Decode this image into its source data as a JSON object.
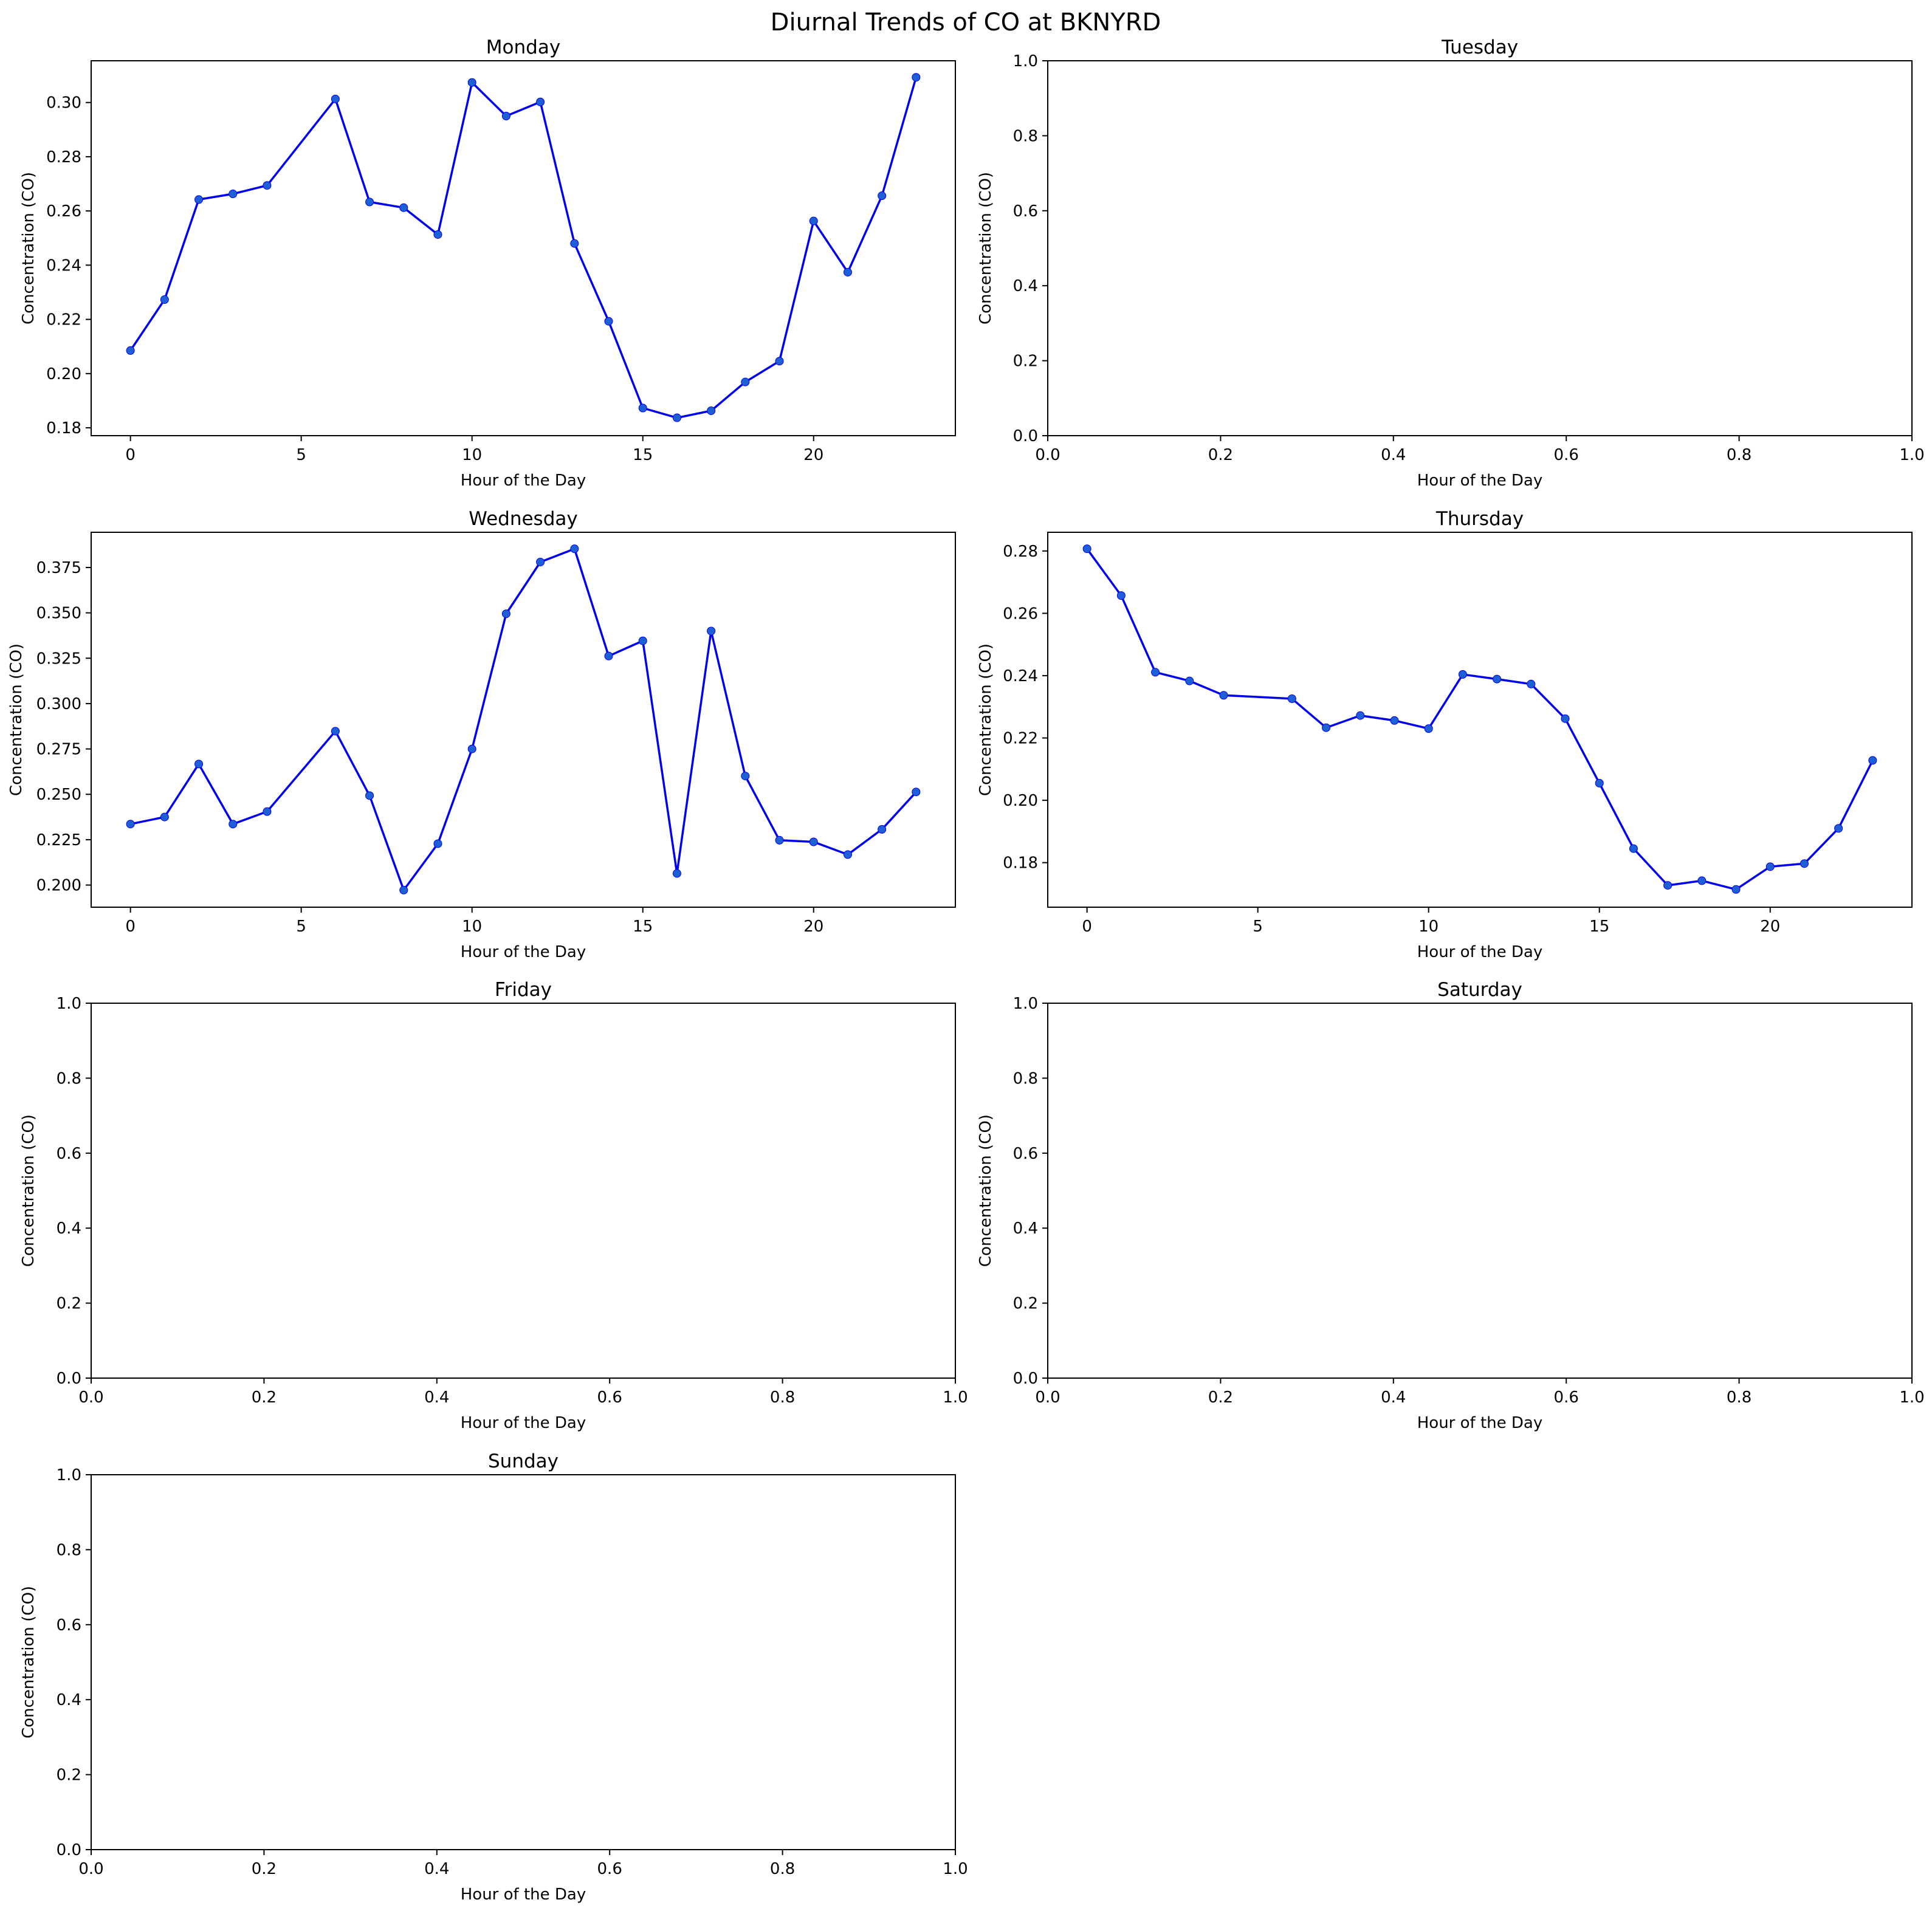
{
  "figure": {
    "title": "Diurnal Trends of CO at BKNYRD"
  },
  "colors": {
    "line": "#0000ee",
    "marker": "#1f5fd6",
    "axes": "#000000",
    "background": "#ffffff"
  },
  "chart_data": [
    {
      "type": "line",
      "title": "Monday",
      "xlabel": "Hour of the Day",
      "ylabel": "Concentration (CO)",
      "xlim": [
        -1.15,
        24.15
      ],
      "ylim": [
        0.1771,
        0.3154
      ],
      "xticks": [
        0,
        5,
        10,
        15,
        20
      ],
      "xtick_labels": [
        "0",
        "5",
        "10",
        "15",
        "20"
      ],
      "yticks": [
        0.18,
        0.2,
        0.22,
        0.24,
        0.26,
        0.28,
        0.3
      ],
      "ytick_labels": [
        "0.18",
        "0.20",
        "0.22",
        "0.24",
        "0.26",
        "0.28",
        "0.30"
      ],
      "grid": false,
      "markers": true,
      "x": [
        0,
        1,
        2,
        3,
        4,
        6,
        7,
        8,
        9,
        10,
        11,
        12,
        13,
        14,
        15,
        16,
        17,
        18,
        19,
        20,
        21,
        22,
        23
      ],
      "y": [
        0.2085,
        0.2273,
        0.2642,
        0.2663,
        0.2694,
        0.3013,
        0.2633,
        0.2612,
        0.2513,
        0.3074,
        0.295,
        0.3002,
        0.248,
        0.2193,
        0.1873,
        0.1837,
        0.1863,
        0.1969,
        0.2046,
        0.2563,
        0.2374,
        0.2656,
        0.3093
      ]
    },
    {
      "type": "line",
      "title": "Tuesday",
      "xlabel": "Hour of the Day",
      "ylabel": "Concentration (CO)",
      "xlim": [
        0,
        1
      ],
      "ylim": [
        0,
        1
      ],
      "xticks": [
        0,
        0.2,
        0.4,
        0.6,
        0.8,
        1
      ],
      "xtick_labels": [
        "0.0",
        "0.2",
        "0.4",
        "0.6",
        "0.8",
        "1.0"
      ],
      "yticks": [
        0,
        0.2,
        0.4,
        0.6,
        0.8,
        1
      ],
      "ytick_labels": [
        "0.0",
        "0.2",
        "0.4",
        "0.6",
        "0.8",
        "1.0"
      ],
      "grid": false,
      "markers": true,
      "x": [],
      "y": []
    },
    {
      "type": "line",
      "title": "Wednesday",
      "xlabel": "Hour of the Day",
      "ylabel": "Concentration (CO)",
      "xlim": [
        -1.15,
        24.15
      ],
      "ylim": [
        0.1878,
        0.3944
      ],
      "xticks": [
        0,
        5,
        10,
        15,
        20
      ],
      "xtick_labels": [
        "0",
        "5",
        "10",
        "15",
        "20"
      ],
      "yticks": [
        0.2,
        0.225,
        0.25,
        0.275,
        0.3,
        0.325,
        0.35,
        0.375
      ],
      "ytick_labels": [
        "0.200",
        "0.225",
        "0.250",
        "0.275",
        "0.300",
        "0.325",
        "0.350",
        "0.375"
      ],
      "grid": false,
      "markers": true,
      "x": [
        0,
        1,
        2,
        3,
        4,
        6,
        7,
        8,
        9,
        10,
        11,
        12,
        13,
        14,
        15,
        16,
        17,
        18,
        19,
        20,
        21,
        22,
        23
      ],
      "y": [
        0.2336,
        0.2375,
        0.2667,
        0.2336,
        0.2405,
        0.2848,
        0.2493,
        0.1972,
        0.2228,
        0.275,
        0.3495,
        0.378,
        0.3853,
        0.3262,
        0.3346,
        0.2064,
        0.34,
        0.2601,
        0.2247,
        0.2238,
        0.2168,
        0.2307,
        0.2513
      ]
    },
    {
      "type": "line",
      "title": "Thursday",
      "xlabel": "Hour of the Day",
      "ylabel": "Concentration (CO)",
      "xlim": [
        -1.15,
        24.15
      ],
      "ylim": [
        0.1657,
        0.286
      ],
      "xticks": [
        0,
        5,
        10,
        15,
        20
      ],
      "xtick_labels": [
        "0",
        "5",
        "10",
        "15",
        "20"
      ],
      "yticks": [
        0.18,
        0.2,
        0.22,
        0.24,
        0.26,
        0.28
      ],
      "ytick_labels": [
        "0.18",
        "0.20",
        "0.22",
        "0.24",
        "0.26",
        "0.28"
      ],
      "grid": false,
      "markers": true,
      "x": [
        0,
        1,
        2,
        3,
        4,
        6,
        7,
        8,
        9,
        10,
        11,
        12,
        13,
        14,
        15,
        16,
        17,
        18,
        19,
        20,
        21,
        22,
        23
      ],
      "y": [
        0.2807,
        0.2657,
        0.2411,
        0.2383,
        0.2337,
        0.2326,
        0.2233,
        0.2272,
        0.2256,
        0.223,
        0.2404,
        0.2389,
        0.2373,
        0.2262,
        0.2055,
        0.1845,
        0.1727,
        0.1742,
        0.1714,
        0.1787,
        0.1797,
        0.191,
        0.2128
      ]
    },
    {
      "type": "line",
      "title": "Friday",
      "xlabel": "Hour of the Day",
      "ylabel": "Concentration (CO)",
      "xlim": [
        0,
        1
      ],
      "ylim": [
        0,
        1
      ],
      "xticks": [
        0,
        0.2,
        0.4,
        0.6,
        0.8,
        1
      ],
      "xtick_labels": [
        "0.0",
        "0.2",
        "0.4",
        "0.6",
        "0.8",
        "1.0"
      ],
      "yticks": [
        0,
        0.2,
        0.4,
        0.6,
        0.8,
        1
      ],
      "ytick_labels": [
        "0.0",
        "0.2",
        "0.4",
        "0.6",
        "0.8",
        "1.0"
      ],
      "grid": false,
      "markers": true,
      "x": [],
      "y": []
    },
    {
      "type": "line",
      "title": "Saturday",
      "xlabel": "Hour of the Day",
      "ylabel": "Concentration (CO)",
      "xlim": [
        0,
        1
      ],
      "ylim": [
        0,
        1
      ],
      "xticks": [
        0,
        0.2,
        0.4,
        0.6,
        0.8,
        1
      ],
      "xtick_labels": [
        "0.0",
        "0.2",
        "0.4",
        "0.6",
        "0.8",
        "1.0"
      ],
      "yticks": [
        0,
        0.2,
        0.4,
        0.6,
        0.8,
        1
      ],
      "ytick_labels": [
        "0.0",
        "0.2",
        "0.4",
        "0.6",
        "0.8",
        "1.0"
      ],
      "grid": false,
      "markers": true,
      "x": [],
      "y": []
    },
    {
      "type": "line",
      "title": "Sunday",
      "xlabel": "Hour of the Day",
      "ylabel": "Concentration (CO)",
      "xlim": [
        0,
        1
      ],
      "ylim": [
        0,
        1
      ],
      "xticks": [
        0,
        0.2,
        0.4,
        0.6,
        0.8,
        1
      ],
      "xtick_labels": [
        "0.0",
        "0.2",
        "0.4",
        "0.6",
        "0.8",
        "1.0"
      ],
      "yticks": [
        0,
        0.2,
        0.4,
        0.6,
        0.8,
        1
      ],
      "ytick_labels": [
        "0.0",
        "0.2",
        "0.4",
        "0.6",
        "0.8",
        "1.0"
      ],
      "grid": false,
      "markers": true,
      "x": [],
      "y": []
    }
  ]
}
